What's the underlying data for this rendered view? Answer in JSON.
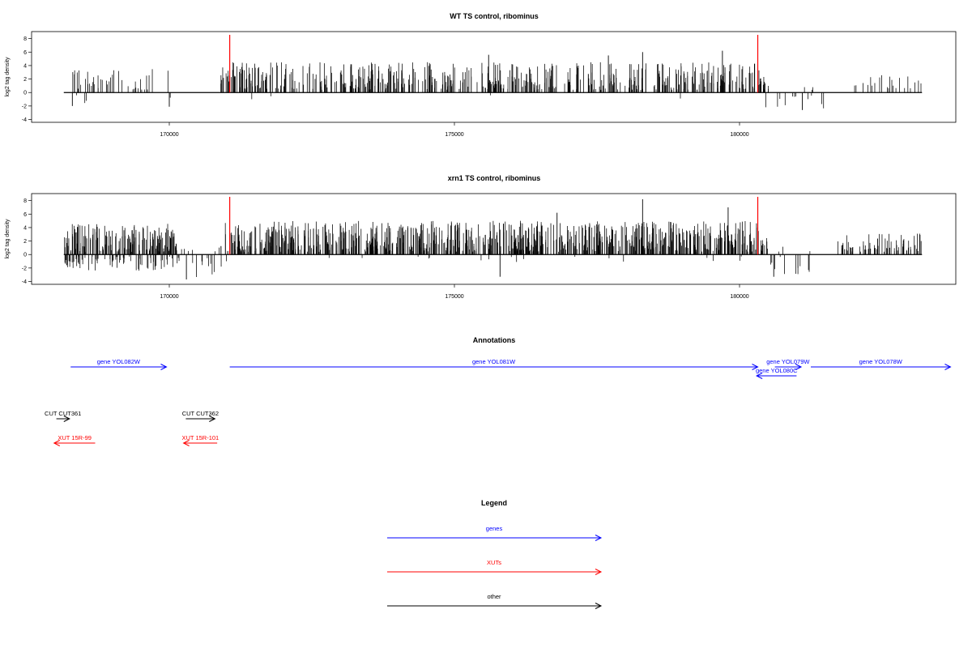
{
  "chart_data": [
    {
      "type": "bar",
      "title": "WT TS control, ribominus",
      "ylabel": "log2 tag density",
      "xlabel": "",
      "xlim": [
        167960,
        183700
      ],
      "ylim": [
        -4,
        8.5
      ],
      "yticks": [
        -4,
        -2,
        0,
        2,
        4,
        6,
        8
      ],
      "xticks": [
        170000,
        175000,
        180000
      ],
      "markers": [
        171060,
        180320
      ],
      "marker_color": "#ff0000",
      "positive_color": "#000000",
      "seed": 11,
      "regions": [
        {
          "start": 168250,
          "end": 170050,
          "count": 45,
          "pos_max": 3.6,
          "neg_rate": 0.1,
          "neg_max": 2.1
        },
        {
          "start": 170900,
          "end": 180450,
          "count": 560,
          "pos_max": 4.5,
          "neg_rate": 0.01,
          "neg_max": 1.0
        },
        {
          "start": 180450,
          "end": 181500,
          "count": 16,
          "pos_max": 1.0,
          "neg_rate": 0.6,
          "neg_max": 2.5
        },
        {
          "start": 182000,
          "end": 183200,
          "count": 22,
          "pos_max": 2.6,
          "neg_rate": 0.0,
          "neg_max": 0.5
        }
      ],
      "peaks": [
        {
          "x": 170000,
          "y": -2.1
        },
        {
          "x": 175600,
          "y": 5.6
        },
        {
          "x": 177700,
          "y": 5.5
        },
        {
          "x": 178300,
          "y": 6.0
        },
        {
          "x": 179700,
          "y": 6.2
        },
        {
          "x": 181100,
          "y": -2.6
        },
        {
          "x": 168300,
          "y": -2.0
        }
      ]
    },
    {
      "type": "bar",
      "title": "xrn1 TS control, ribominus",
      "ylabel": "log2 tag density",
      "xlabel": "",
      "xlim": [
        167960,
        183700
      ],
      "ylim": [
        -4,
        8.5
      ],
      "yticks": [
        -4,
        -2,
        0,
        2,
        4,
        6,
        8
      ],
      "xticks": [
        170000,
        175000,
        180000
      ],
      "markers": [
        171060,
        180320
      ],
      "marker_color": "#ff0000",
      "positive_color": "#000000",
      "seed": 29,
      "regions": [
        {
          "start": 168150,
          "end": 170200,
          "count": 260,
          "pos_max": 4.6,
          "neg_rate": 0.28,
          "neg_max": 2.4
        },
        {
          "start": 170200,
          "end": 170950,
          "count": 18,
          "pos_max": 1.5,
          "neg_rate": 0.6,
          "neg_max": 3.4
        },
        {
          "start": 170950,
          "end": 180500,
          "count": 900,
          "pos_max": 5.0,
          "neg_rate": 0.02,
          "neg_max": 1.2
        },
        {
          "start": 180500,
          "end": 181300,
          "count": 14,
          "pos_max": 1.2,
          "neg_rate": 0.7,
          "neg_max": 3.2
        },
        {
          "start": 181700,
          "end": 183200,
          "count": 70,
          "pos_max": 3.1,
          "neg_rate": 0.0,
          "neg_max": 0.5
        }
      ],
      "peaks": [
        {
          "x": 175800,
          "y": -3.3
        },
        {
          "x": 178300,
          "y": 8.2
        },
        {
          "x": 176800,
          "y": 6.2
        },
        {
          "x": 170300,
          "y": -3.7
        },
        {
          "x": 180600,
          "y": -3.3
        },
        {
          "x": 179800,
          "y": 7.0
        }
      ]
    }
  ],
  "annotations": {
    "title": "Annotations",
    "xlim": [
      167960,
      183700
    ],
    "tracks": [
      {
        "label": "gene YOL082W",
        "start": 168270,
        "end": 169950,
        "strand": "+",
        "row": 0,
        "color": "#0000ff"
      },
      {
        "label": "gene YOL081W",
        "start": 171060,
        "end": 180320,
        "strand": "+",
        "row": 0,
        "color": "#0000ff"
      },
      {
        "label": "gene YOL079W",
        "start": 180620,
        "end": 181080,
        "strand": "+",
        "row": 0,
        "color": "#0000ff"
      },
      {
        "label": "gene YOL080C",
        "start": 180300,
        "end": 181000,
        "strand": "-",
        "row": 1,
        "color": "#0000ff"
      },
      {
        "label": "gene YOL078W",
        "start": 181250,
        "end": 183700,
        "strand": "+",
        "row": 0,
        "color": "#0000ff"
      },
      {
        "label": "CUT CUT361",
        "start": 168020,
        "end": 168250,
        "strand": "+",
        "row": 3,
        "color": "#000000"
      },
      {
        "label": "CUT CUT362",
        "start": 170290,
        "end": 170800,
        "strand": "+",
        "row": 3,
        "color": "#000000"
      },
      {
        "label": "XUT 15R-99",
        "start": 167980,
        "end": 168700,
        "strand": "-",
        "row": 4,
        "color": "#ff0000"
      },
      {
        "label": "XUT 15R-101",
        "start": 170250,
        "end": 170840,
        "strand": "-",
        "row": 4,
        "color": "#ff0000"
      }
    ]
  },
  "legend": {
    "title": "Legend",
    "items": [
      {
        "label": "genes",
        "color": "#0000ff"
      },
      {
        "label": "XUTs",
        "color": "#ff0000"
      },
      {
        "label": "other",
        "color": "#000000"
      }
    ]
  }
}
